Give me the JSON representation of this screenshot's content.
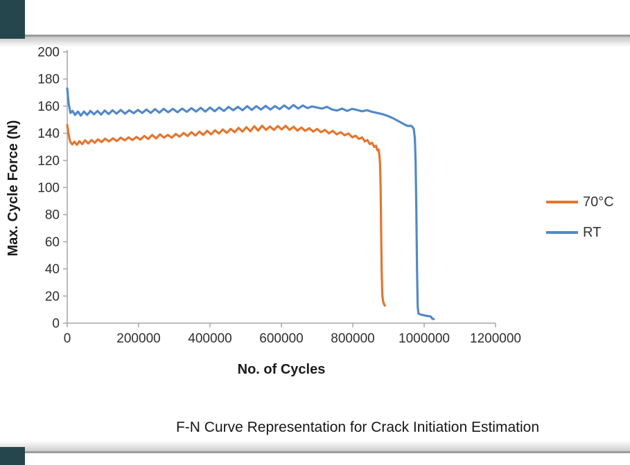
{
  "page": {
    "background": "#ffffff",
    "frame": {
      "corner_accent_color": "#25464c",
      "rule_color": "#9b9b9b"
    }
  },
  "colors": {
    "axis": "#a6a6a6",
    "tick_text": "#2e2e2e",
    "series_70c": "#e3762f",
    "series_rt": "#5289c7"
  },
  "chart_data": {
    "type": "line",
    "title": "F-N Curve Representation for Crack Initiation Estimation",
    "xlabel": "No. of Cycles",
    "ylabel": "Max. Cycle Force (N)",
    "xlim": [
      0,
      1200000
    ],
    "ylim": [
      0,
      200
    ],
    "x_ticks": [
      0,
      200000,
      400000,
      600000,
      800000,
      1000000,
      1200000
    ],
    "y_ticks": [
      0,
      20,
      40,
      60,
      80,
      100,
      120,
      140,
      160,
      180,
      200
    ],
    "grid": false,
    "legend_position": "right",
    "series": [
      {
        "name": "70°C",
        "color": "#e3762f",
        "points": [
          [
            0,
            146
          ],
          [
            4000,
            139
          ],
          [
            8000,
            134
          ],
          [
            14000,
            131.8
          ],
          [
            20000,
            133.8
          ],
          [
            27000,
            131.5
          ],
          [
            34000,
            134.2
          ],
          [
            42000,
            132
          ],
          [
            50000,
            134.8
          ],
          [
            59000,
            132.5
          ],
          [
            68000,
            135
          ],
          [
            77000,
            133
          ],
          [
            86000,
            135.5
          ],
          [
            96000,
            133.5
          ],
          [
            106000,
            136
          ],
          [
            117000,
            134
          ],
          [
            128000,
            136.3
          ],
          [
            139000,
            134.3
          ],
          [
            150000,
            136.8
          ],
          [
            161000,
            134.8
          ],
          [
            172000,
            137
          ],
          [
            183000,
            135
          ],
          [
            194000,
            137.3
          ],
          [
            205000,
            135.3
          ],
          [
            216000,
            138
          ],
          [
            227000,
            135.8
          ],
          [
            238000,
            138.8
          ],
          [
            249000,
            136.2
          ],
          [
            260000,
            139.2
          ],
          [
            271000,
            136.8
          ],
          [
            282000,
            138.8
          ],
          [
            293000,
            136.8
          ],
          [
            304000,
            139.5
          ],
          [
            315000,
            137.5
          ],
          [
            326000,
            140.2
          ],
          [
            337000,
            138
          ],
          [
            348000,
            140.8
          ],
          [
            359000,
            138.3
          ],
          [
            370000,
            141.2
          ],
          [
            381000,
            138.8
          ],
          [
            392000,
            141.8
          ],
          [
            403000,
            139.2
          ],
          [
            414000,
            142.2
          ],
          [
            425000,
            139.8
          ],
          [
            436000,
            142.8
          ],
          [
            447000,
            140.3
          ],
          [
            458000,
            143.2
          ],
          [
            469000,
            140.8
          ],
          [
            480000,
            144
          ],
          [
            491000,
            141.2
          ],
          [
            502000,
            144.5
          ],
          [
            513000,
            141.5
          ],
          [
            524000,
            145.2
          ],
          [
            535000,
            142
          ],
          [
            546000,
            145.5
          ],
          [
            557000,
            142.5
          ],
          [
            568000,
            145
          ],
          [
            579000,
            142.5
          ],
          [
            590000,
            145.3
          ],
          [
            601000,
            142.8
          ],
          [
            612000,
            145.5
          ],
          [
            623000,
            142.5
          ],
          [
            634000,
            144.8
          ],
          [
            645000,
            142
          ],
          [
            656000,
            144.2
          ],
          [
            667000,
            141.8
          ],
          [
            678000,
            143.8
          ],
          [
            689000,
            141.2
          ],
          [
            700000,
            143.2
          ],
          [
            711000,
            140.8
          ],
          [
            722000,
            142.5
          ],
          [
            733000,
            140
          ],
          [
            744000,
            141.8
          ],
          [
            755000,
            139.2
          ],
          [
            766000,
            140.8
          ],
          [
            777000,
            138.5
          ],
          [
            788000,
            139.8
          ],
          [
            799000,
            137
          ],
          [
            808000,
            138.2
          ],
          [
            817000,
            135.8
          ],
          [
            826000,
            137
          ],
          [
            834000,
            134
          ],
          [
            841000,
            135
          ],
          [
            848000,
            132
          ],
          [
            854000,
            133
          ],
          [
            860000,
            130
          ],
          [
            865000,
            130.8
          ],
          [
            869000,
            127.5
          ],
          [
            872000,
            128
          ],
          [
            874500,
            124
          ],
          [
            876500,
            117
          ],
          [
            878000,
            100
          ],
          [
            879500,
            70
          ],
          [
            881000,
            38
          ],
          [
            883000,
            20
          ],
          [
            885000,
            16
          ],
          [
            887000,
            14.5
          ],
          [
            889000,
            13.2
          ],
          [
            890000,
            13
          ]
        ]
      },
      {
        "name": "RT",
        "color": "#5289c7",
        "points": [
          [
            0,
            173
          ],
          [
            4000,
            162
          ],
          [
            9000,
            155
          ],
          [
            15000,
            156.5
          ],
          [
            22000,
            153.5
          ],
          [
            30000,
            156
          ],
          [
            38000,
            153
          ],
          [
            47000,
            156
          ],
          [
            56000,
            153.5
          ],
          [
            65000,
            156.5
          ],
          [
            75000,
            154
          ],
          [
            85000,
            156.5
          ],
          [
            95000,
            153.8
          ],
          [
            105000,
            156.8
          ],
          [
            116000,
            154.2
          ],
          [
            127000,
            157
          ],
          [
            138000,
            154.5
          ],
          [
            150000,
            157.2
          ],
          [
            162000,
            154.5
          ],
          [
            174000,
            157
          ],
          [
            186000,
            154.8
          ],
          [
            198000,
            157.2
          ],
          [
            210000,
            155
          ],
          [
            222000,
            157.5
          ],
          [
            234000,
            155
          ],
          [
            246000,
            157.8
          ],
          [
            258000,
            155.2
          ],
          [
            270000,
            158
          ],
          [
            283000,
            155.5
          ],
          [
            296000,
            158
          ],
          [
            309000,
            155.5
          ],
          [
            322000,
            158.2
          ],
          [
            335000,
            155.8
          ],
          [
            348000,
            158.5
          ],
          [
            361000,
            156
          ],
          [
            374000,
            158.8
          ],
          [
            387000,
            156
          ],
          [
            400000,
            159
          ],
          [
            413000,
            156.2
          ],
          [
            426000,
            159
          ],
          [
            439000,
            156.5
          ],
          [
            452000,
            159.5
          ],
          [
            465000,
            157
          ],
          [
            478000,
            159.5
          ],
          [
            491000,
            157
          ],
          [
            504000,
            160
          ],
          [
            517000,
            157.2
          ],
          [
            530000,
            160
          ],
          [
            543000,
            157.5
          ],
          [
            556000,
            160.2
          ],
          [
            569000,
            157.5
          ],
          [
            582000,
            160
          ],
          [
            595000,
            157.8
          ],
          [
            608000,
            160.5
          ],
          [
            621000,
            158
          ],
          [
            634000,
            160.8
          ],
          [
            647000,
            158.2
          ],
          [
            660000,
            160.5
          ],
          [
            673000,
            158.5
          ],
          [
            686000,
            159.8
          ],
          [
            700000,
            159
          ],
          [
            714000,
            158.2
          ],
          [
            728000,
            159.5
          ],
          [
            742000,
            157.5
          ],
          [
            756000,
            156.8
          ],
          [
            770000,
            158.2
          ],
          [
            784000,
            156.5
          ],
          [
            798000,
            158
          ],
          [
            812000,
            157.2
          ],
          [
            826000,
            156.2
          ],
          [
            840000,
            157
          ],
          [
            854000,
            155.8
          ],
          [
            868000,
            155
          ],
          [
            882000,
            154.2
          ],
          [
            896000,
            153
          ],
          [
            910000,
            151.5
          ],
          [
            924000,
            149.5
          ],
          [
            938000,
            147.5
          ],
          [
            948000,
            146
          ],
          [
            956000,
            145.3
          ],
          [
            962000,
            145.6
          ],
          [
            967000,
            144.8
          ],
          [
            971000,
            143
          ],
          [
            974000,
            136
          ],
          [
            976000,
            120
          ],
          [
            978000,
            85
          ],
          [
            980000,
            40
          ],
          [
            982000,
            12
          ],
          [
            984000,
            7
          ],
          [
            992000,
            6.2
          ],
          [
            1002000,
            5.6
          ],
          [
            1012000,
            5.2
          ],
          [
            1019000,
            4.8
          ],
          [
            1023000,
            3.2
          ],
          [
            1027000,
            3
          ]
        ]
      }
    ]
  }
}
